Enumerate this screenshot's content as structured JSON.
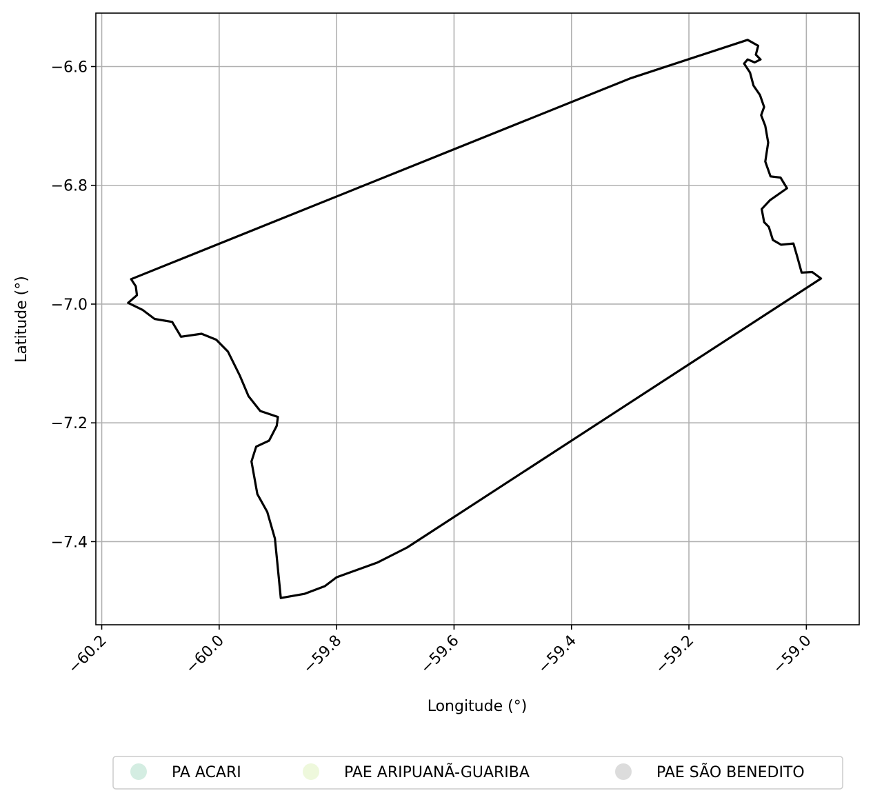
{
  "chart_data": {
    "type": "map",
    "xlabel": "Longitude (°)",
    "ylabel": "Latitude (°)",
    "xlim": [
      -60.21,
      -58.91
    ],
    "ylim": [
      -7.54,
      -6.51
    ],
    "xticks": [
      -60.2,
      -60.0,
      -59.8,
      -59.6,
      -59.4,
      -59.2,
      -59.0
    ],
    "xtick_labels": [
      "−60.2",
      "−60.0",
      "−59.8",
      "−59.6",
      "−59.4",
      "−59.2",
      "−59.0"
    ],
    "yticks": [
      -6.6,
      -6.8,
      -7.0,
      -7.2,
      -7.4
    ],
    "ytick_labels": [
      "−6.6",
      "−6.8",
      "−7.0",
      "−7.2",
      "−7.4"
    ],
    "grid": true,
    "legend_placement": "bottom-center",
    "legend": [
      {
        "label": "PA ACARI",
        "color": "#d4ede2"
      },
      {
        "label": "PAE ARIPUANÃ-GUARIBA",
        "color": "#eef8dc"
      },
      {
        "label": "PAE SÃO BENEDITO",
        "color": "#dcdcdc"
      }
    ],
    "boundary": {
      "color": "#000000",
      "points": [
        [
          -60.15,
          -6.958
        ],
        [
          -59.3,
          -6.62
        ],
        [
          -59.1,
          -6.555
        ],
        [
          -59.082,
          -6.565
        ],
        [
          -59.086,
          -6.58
        ],
        [
          -59.078,
          -6.588
        ],
        [
          -59.088,
          -6.593
        ],
        [
          -59.1,
          -6.588
        ],
        [
          -59.106,
          -6.595
        ],
        [
          -59.096,
          -6.61
        ],
        [
          -59.09,
          -6.632
        ],
        [
          -59.079,
          -6.648
        ],
        [
          -59.072,
          -6.668
        ],
        [
          -59.077,
          -6.682
        ],
        [
          -59.07,
          -6.7
        ],
        [
          -59.065,
          -6.728
        ],
        [
          -59.07,
          -6.76
        ],
        [
          -59.061,
          -6.785
        ],
        [
          -59.044,
          -6.787
        ],
        [
          -59.033,
          -6.805
        ],
        [
          -59.062,
          -6.825
        ],
        [
          -59.076,
          -6.84
        ],
        [
          -59.072,
          -6.862
        ],
        [
          -59.064,
          -6.87
        ],
        [
          -59.057,
          -6.892
        ],
        [
          -59.043,
          -6.9
        ],
        [
          -59.022,
          -6.898
        ],
        [
          -59.015,
          -6.922
        ],
        [
          -59.008,
          -6.947
        ],
        [
          -58.99,
          -6.946
        ],
        [
          -58.975,
          -6.957
        ],
        [
          -59.68,
          -7.41
        ],
        [
          -59.73,
          -7.435
        ],
        [
          -59.8,
          -7.46
        ],
        [
          -59.82,
          -7.475
        ],
        [
          -59.855,
          -7.488
        ],
        [
          -59.895,
          -7.495
        ],
        [
          -59.905,
          -7.395
        ],
        [
          -59.918,
          -7.35
        ],
        [
          -59.935,
          -7.32
        ],
        [
          -59.945,
          -7.265
        ],
        [
          -59.937,
          -7.24
        ],
        [
          -59.915,
          -7.23
        ],
        [
          -59.902,
          -7.205
        ],
        [
          -59.9,
          -7.19
        ],
        [
          -59.93,
          -7.18
        ],
        [
          -59.95,
          -7.155
        ],
        [
          -59.965,
          -7.12
        ],
        [
          -59.985,
          -7.08
        ],
        [
          -60.005,
          -7.06
        ],
        [
          -60.03,
          -7.05
        ],
        [
          -60.065,
          -7.055
        ],
        [
          -60.08,
          -7.03
        ],
        [
          -60.11,
          -7.025
        ],
        [
          -60.13,
          -7.01
        ],
        [
          -60.155,
          -6.998
        ],
        [
          -60.14,
          -6.985
        ],
        [
          -60.142,
          -6.97
        ],
        [
          -60.15,
          -6.958
        ]
      ]
    }
  }
}
